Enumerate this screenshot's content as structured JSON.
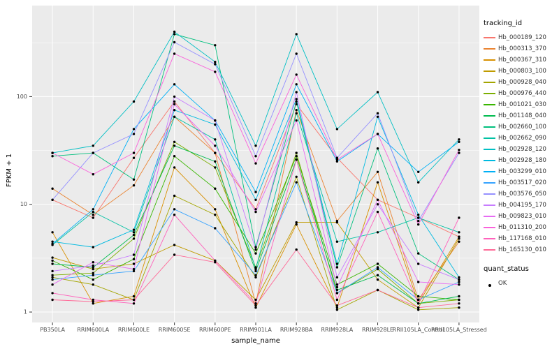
{
  "chart_data": {
    "type": "line",
    "title": "",
    "xlabel": "sample_name",
    "ylabel": "FPKM + 1",
    "y_scale": "log10",
    "y_ticks": [
      1,
      10,
      100
    ],
    "y_minor_ticks": [
      3.1623,
      31.623,
      316.23
    ],
    "y_range": [
      0.8,
      700
    ],
    "panel_background": "#EBEBEB",
    "grid_color": "#FFFFFF",
    "point_color": "#000000",
    "axis_text_color": "#4D4D4D",
    "legend_position": "right",
    "legend": {
      "color_title": "tracking_id",
      "shape_title": "quant_status",
      "shape_items": [
        {
          "label": "OK"
        }
      ]
    },
    "categories": [
      "PB350LA",
      "RRIM600LA",
      "RRIM600LE",
      "RRIM600SE",
      "RRIM600PE",
      "RRIM901LA",
      "RRIM928BA",
      "RRIM928LA",
      "RRIM928LE",
      "RRII105LA_Control",
      "RRII105LA_Stressed"
    ],
    "series": [
      {
        "name": "Hb_000189_120",
        "color": "#F8766D",
        "values": [
          11,
          7.5,
          27,
          90,
          30,
          9,
          85,
          27,
          11,
          7.5,
          5
        ]
      },
      {
        "name": "Hb_000313_370",
        "color": "#EA8331",
        "values": [
          14,
          8,
          15,
          65,
          30,
          1.2,
          75,
          7,
          20,
          1.3,
          4.5
        ]
      },
      {
        "name": "Hb_000367_310",
        "color": "#D89000",
        "values": [
          5.5,
          1.2,
          1.4,
          22,
          9,
          1.1,
          6.5,
          1.1,
          16,
          1.2,
          5
        ]
      },
      {
        "name": "Hb_000803_100",
        "color": "#C09B00",
        "values": [
          3.2,
          2.5,
          2.8,
          4.2,
          3.0,
          1.3,
          6.8,
          6.8,
          2.0,
          1.1,
          4.8
        ]
      },
      {
        "name": "Hb_000928_040",
        "color": "#A3A500",
        "values": [
          2.1,
          1.8,
          1.3,
          12,
          8,
          2.1,
          18,
          1.05,
          1.6,
          1.05,
          1.1
        ]
      },
      {
        "name": "Hb_000976_440",
        "color": "#7CAE00",
        "values": [
          2.2,
          2.3,
          4.8,
          38,
          22,
          2.6,
          30,
          1.5,
          2.5,
          1.2,
          1.3
        ]
      },
      {
        "name": "Hb_001021_030",
        "color": "#39B600",
        "values": [
          3.0,
          2.0,
          3.1,
          28,
          14,
          3.5,
          28,
          1.8,
          2.8,
          1.4,
          1.3
        ]
      },
      {
        "name": "Hb_001148_040",
        "color": "#00BB4E",
        "values": [
          2.8,
          2.6,
          5.2,
          35,
          25,
          2.4,
          26,
          1.6,
          2.2,
          1.2,
          1.4
        ]
      },
      {
        "name": "Hb_002660_100",
        "color": "#00BF7D",
        "values": [
          28,
          30,
          17,
          380,
          300,
          4.0,
          90,
          2.6,
          33,
          3.5,
          2.0
        ]
      },
      {
        "name": "Hb_002662_090",
        "color": "#00C1A3",
        "values": [
          4.2,
          8.5,
          5.5,
          65,
          40,
          2.5,
          70,
          4.5,
          5.5,
          7.5,
          5.5
        ]
      },
      {
        "name": "Hb_002928_120",
        "color": "#00BFC4",
        "values": [
          30,
          35,
          90,
          400,
          210,
          35,
          380,
          50,
          110,
          16,
          40
        ]
      },
      {
        "name": "Hb_002928_180",
        "color": "#00BAE0",
        "values": [
          4.5,
          4.0,
          5.8,
          75,
          55,
          11,
          95,
          2.8,
          65,
          8,
          2.1
        ]
      },
      {
        "name": "Hb_003299_010",
        "color": "#00B0F6",
        "values": [
          4.3,
          9,
          50,
          130,
          60,
          13,
          130,
          25,
          45,
          20,
          38
        ]
      },
      {
        "name": "Hb_003517_020",
        "color": "#35A2FF",
        "values": [
          2.0,
          2.2,
          2.4,
          9,
          6,
          2.2,
          16,
          1.5,
          2.6,
          1.3,
          1.9
        ]
      },
      {
        "name": "Hb_003576_050",
        "color": "#9590FF",
        "values": [
          11,
          30,
          45,
          320,
          200,
          28,
          250,
          27,
          70,
          7,
          30
        ]
      },
      {
        "name": "Hb_004195_170",
        "color": "#C77CFF",
        "values": [
          2.4,
          2.7,
          3.4,
          100,
          60,
          3.8,
          110,
          2.1,
          10,
          2.8,
          2.0
        ]
      },
      {
        "name": "Hb_009823_010",
        "color": "#E76BF3",
        "values": [
          1.8,
          2.9,
          2.5,
          85,
          35,
          8.5,
          60,
          1.7,
          11,
          1.9,
          1.8
        ]
      },
      {
        "name": "Hb_011310_200",
        "color": "#FA62DB",
        "values": [
          30,
          19,
          30,
          250,
          170,
          24,
          160,
          26,
          45,
          6.5,
          32
        ]
      },
      {
        "name": "Hb_117168_010",
        "color": "#FF62BC",
        "values": [
          1.5,
          1.3,
          1.2,
          8,
          3,
          1.2,
          26,
          1.3,
          8.5,
          1.2,
          7.5
        ]
      },
      {
        "name": "Hb_165130_010",
        "color": "#FF6A98",
        "values": [
          1.3,
          1.25,
          1.3,
          3.4,
          2.9,
          1.15,
          3.8,
          1.15,
          1.6,
          1.1,
          1.2
        ]
      }
    ]
  }
}
